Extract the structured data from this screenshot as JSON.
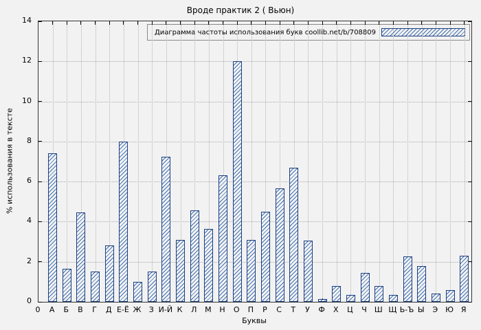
{
  "chart_data": {
    "type": "bar",
    "title": "Вроде практик 2 ( Вьюн)",
    "legend": "Диаграмма частоты использования букв coollib.net/b/708809",
    "legend_position": "top-right",
    "xlabel": "Буквы",
    "ylabel": "% использования в тексте",
    "origin_tick": "0",
    "categories": [
      "А",
      "Б",
      "В",
      "Г",
      "Д",
      "Е-Ё",
      "Ж",
      "З",
      "И-Й",
      "К",
      "Л",
      "М",
      "Н",
      "О",
      "П",
      "Р",
      "С",
      "Т",
      "У",
      "Ф",
      "Х",
      "Ц",
      "Ч",
      "Ш",
      "Щ",
      "Ь-Ъ",
      "Ы",
      "Э",
      "Ю",
      "Я"
    ],
    "values": [
      7.4,
      1.65,
      4.45,
      1.5,
      2.8,
      8.0,
      1.0,
      1.5,
      7.25,
      3.1,
      4.55,
      3.65,
      6.3,
      12.0,
      3.1,
      4.5,
      5.65,
      6.7,
      3.05,
      0.15,
      0.8,
      0.35,
      1.45,
      0.8,
      0.35,
      2.25,
      1.8,
      0.4,
      0.6,
      2.3
    ],
    "ylim": [
      0,
      14
    ],
    "yticks": [
      0,
      2,
      4,
      6,
      8,
      10,
      12,
      14
    ],
    "grid": true,
    "colors": {
      "bar_edge": "#1a3e7e",
      "bar_hatch": "#3f6fb3",
      "background": "#f2f2f2",
      "grid": "#a9a9a9"
    }
  }
}
